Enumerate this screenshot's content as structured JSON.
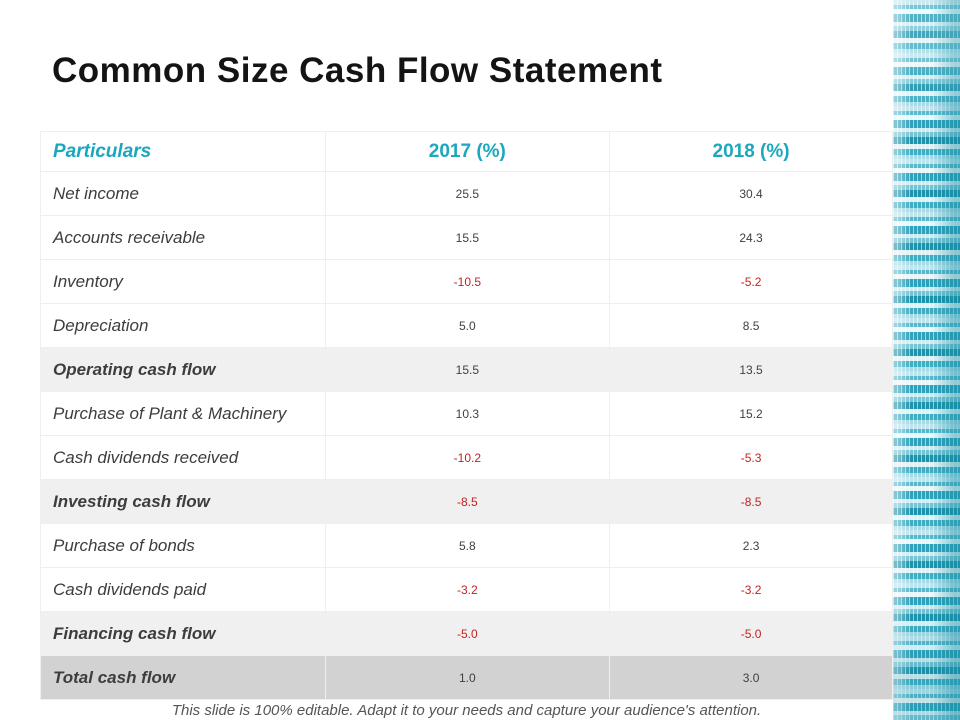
{
  "slide": {
    "title": "Common Size Cash Flow Statement",
    "footer": "This slide is 100% editable. Adapt it to your needs and capture your audience's attention."
  },
  "table": {
    "columns": [
      "Particulars",
      "2017 (%)",
      "2018 (%)"
    ],
    "rows": [
      {
        "label": "Net income",
        "v2017": "25.5",
        "v2018": "30.4",
        "emphasis": ""
      },
      {
        "label": "Accounts receivable",
        "v2017": "15.5",
        "v2018": "24.3",
        "emphasis": ""
      },
      {
        "label": "Inventory",
        "v2017": "-10.5",
        "v2018": "-5.2",
        "emphasis": ""
      },
      {
        "label": "Depreciation",
        "v2017": "5.0",
        "v2018": "8.5",
        "emphasis": ""
      },
      {
        "label": "Operating cash flow",
        "v2017": "15.5",
        "v2018": "13.5",
        "emphasis": "summary"
      },
      {
        "label": "Purchase of Plant & Machinery",
        "v2017": "10.3",
        "v2018": "15.2",
        "emphasis": ""
      },
      {
        "label": "Cash dividends received",
        "v2017": "-10.2",
        "v2018": "-5.3",
        "emphasis": ""
      },
      {
        "label": "Investing cash flow",
        "v2017": "-8.5",
        "v2018": "-8.5",
        "emphasis": "summary"
      },
      {
        "label": "Purchase of bonds",
        "v2017": "5.8",
        "v2018": "2.3",
        "emphasis": ""
      },
      {
        "label": "Cash dividends paid",
        "v2017": "-3.2",
        "v2018": "-3.2",
        "emphasis": ""
      },
      {
        "label": "Financing cash flow",
        "v2017": "-5.0",
        "v2018": "-5.0",
        "emphasis": "summary"
      },
      {
        "label": "Total cash flow",
        "v2017": "1.0",
        "v2018": "3.0",
        "emphasis": "total"
      }
    ]
  },
  "colors": {
    "accent_teal": "#1ba7bd",
    "negative_red": "#c32222",
    "summary_row_bg": "#f0f0f0",
    "total_row_bg": "#d2d2d2",
    "coin_image_teal": "#2da2ba",
    "body_text": "#404040"
  }
}
